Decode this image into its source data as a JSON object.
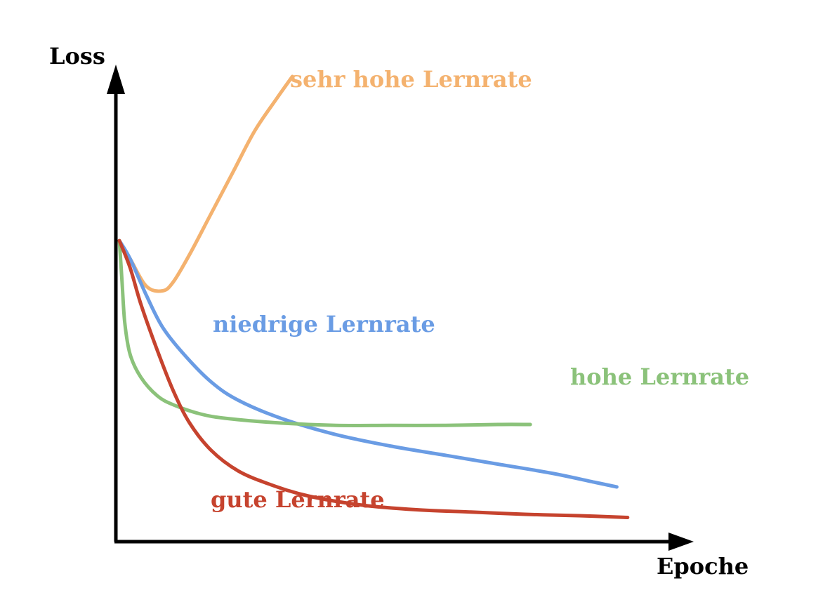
{
  "chart_data": {
    "type": "line",
    "xlabel": "Epoche",
    "ylabel": "Loss",
    "xlim": [
      0,
      1
    ],
    "ylim": [
      0,
      1
    ],
    "grid": false,
    "legend": "inline",
    "ticks": false,
    "series": [
      {
        "name": "sehr hohe Lernrate",
        "color": "#F4B26F",
        "x": [
          0.0,
          0.02,
          0.05,
          0.08,
          0.1,
          0.13,
          0.17,
          0.21,
          0.25,
          0.29,
          0.32
        ],
        "y": [
          0.66,
          0.62,
          0.56,
          0.55,
          0.57,
          0.63,
          0.72,
          0.81,
          0.9,
          0.97,
          1.02
        ]
      },
      {
        "name": "niedrige Lernrate",
        "color": "#6A9CE4",
        "x": [
          0.0,
          0.02,
          0.05,
          0.08,
          0.12,
          0.17,
          0.22,
          0.3,
          0.4,
          0.5,
          0.6,
          0.7,
          0.8,
          0.88,
          0.92
        ],
        "y": [
          0.66,
          0.62,
          0.54,
          0.47,
          0.41,
          0.35,
          0.31,
          0.27,
          0.235,
          0.21,
          0.19,
          0.17,
          0.15,
          0.13,
          0.12
        ]
      },
      {
        "name": "hohe Lernrate",
        "color": "#8BC27A",
        "x": [
          0.0,
          0.005,
          0.01,
          0.02,
          0.04,
          0.07,
          0.1,
          0.15,
          0.2,
          0.3,
          0.4,
          0.5,
          0.6,
          0.7,
          0.76
        ],
        "y": [
          0.66,
          0.57,
          0.48,
          0.41,
          0.36,
          0.32,
          0.3,
          0.28,
          0.27,
          0.26,
          0.255,
          0.255,
          0.255,
          0.257,
          0.257
        ]
      },
      {
        "name": "gute Lernrate",
        "color": "#C6432E",
        "x": [
          0.0,
          0.02,
          0.04,
          0.07,
          0.1,
          0.13,
          0.17,
          0.22,
          0.28,
          0.35,
          0.45,
          0.55,
          0.65,
          0.75,
          0.85,
          0.94
        ],
        "y": [
          0.66,
          0.6,
          0.52,
          0.42,
          0.33,
          0.26,
          0.2,
          0.155,
          0.125,
          0.1,
          0.08,
          0.07,
          0.065,
          0.06,
          0.057,
          0.053
        ]
      }
    ]
  }
}
